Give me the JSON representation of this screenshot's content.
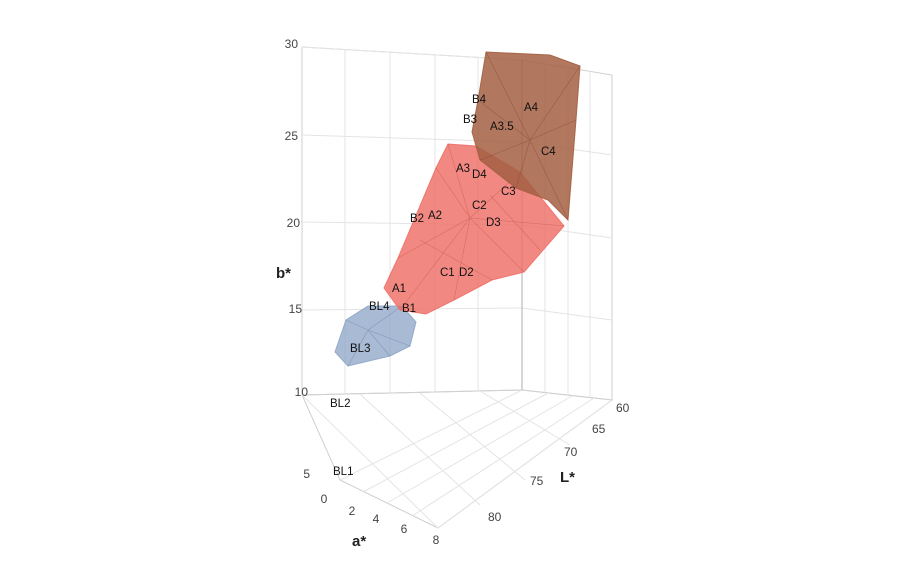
{
  "chart_data": {
    "type": "scatter3d",
    "title": "",
    "axes": {
      "a": {
        "label": "a*",
        "ticks": [
          "0",
          "2",
          "4",
          "6",
          "8"
        ]
      },
      "L": {
        "label": "L*",
        "ticks": [
          "60",
          "65",
          "70",
          "75",
          "80"
        ]
      },
      "b": {
        "label": "b*",
        "ticks": [
          "5",
          "10",
          "15",
          "20",
          "25",
          "30"
        ]
      }
    },
    "hulls": [
      {
        "name": "blue-cluster",
        "color": "#8fa6c8"
      },
      {
        "name": "red-cluster",
        "color": "#ee6f67"
      },
      {
        "name": "brown-cluster",
        "color": "#a35f43"
      }
    ],
    "point_labels": [
      {
        "text": "BL1",
        "b": 5
      },
      {
        "text": "BL2",
        "b": 9.5
      },
      {
        "text": "BL3",
        "b": 12.8
      },
      {
        "text": "BL4",
        "b": 15.6
      },
      {
        "text": "B1",
        "b": 15.5
      },
      {
        "text": "A1",
        "b": 16.5
      },
      {
        "text": "C1",
        "b": 17.5
      },
      {
        "text": "D2",
        "b": 17.5
      },
      {
        "text": "B2",
        "b": 20.5
      },
      {
        "text": "A2",
        "b": 20.6
      },
      {
        "text": "D3",
        "b": 20.5
      },
      {
        "text": "C2",
        "b": 21.0
      },
      {
        "text": "C3",
        "b": 22.0
      },
      {
        "text": "A3",
        "b": 23.0
      },
      {
        "text": "D4",
        "b": 22.8
      },
      {
        "text": "C4",
        "b": 24.5
      },
      {
        "text": "A3.5",
        "b": 25.8
      },
      {
        "text": "B3",
        "b": 26.5
      },
      {
        "text": "A4",
        "b": 27.0
      },
      {
        "text": "B4",
        "b": 27.2
      }
    ]
  }
}
